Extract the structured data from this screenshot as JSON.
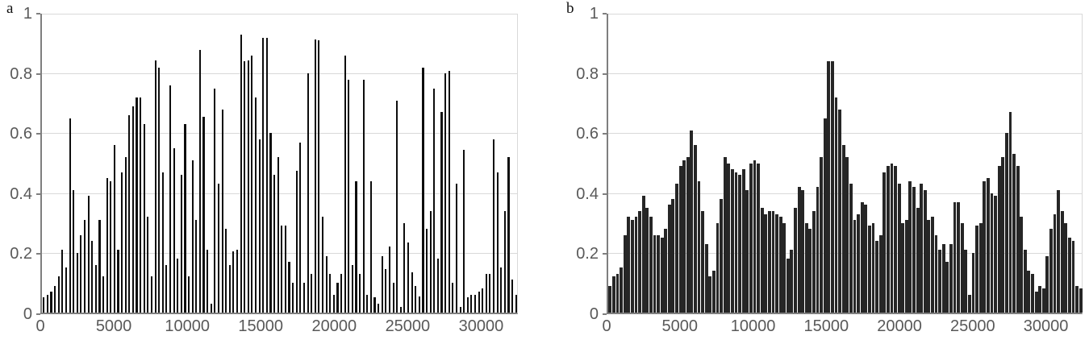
{
  "colors": {
    "background": "#ffffff",
    "axis_line": "#7f7f7f",
    "gridline": "#d9d9d9",
    "tick_text": "#595959",
    "panel_label_text": "#111111",
    "bar_a": "#0d0d0d",
    "bar_b": "#262626"
  },
  "chart_data": [
    {
      "type": "bar",
      "panel_label": "a",
      "legend": "none",
      "grid": "horizontal",
      "x_ticks": [
        0,
        5000,
        10000,
        15000,
        20000,
        25000,
        30000
      ],
      "y_ticks": [
        0,
        0.2,
        0.4,
        0.6,
        0.8,
        1
      ],
      "xlim": [
        0,
        32500
      ],
      "ylim": [
        0,
        1
      ],
      "bar_color": "#0d0d0d",
      "values": [
        0.05,
        0.06,
        0.07,
        0.09,
        0.12,
        0.21,
        0.15,
        0.65,
        0.41,
        0.2,
        0.26,
        0.31,
        0.39,
        0.24,
        0.16,
        0.31,
        0.12,
        0.45,
        0.44,
        0.56,
        0.21,
        0.47,
        0.52,
        0.66,
        0.69,
        0.72,
        0.72,
        0.63,
        0.32,
        0.12,
        0.845,
        0.82,
        0.47,
        0.16,
        0.76,
        0.55,
        0.18,
        0.46,
        0.63,
        0.12,
        0.51,
        0.31,
        0.88,
        0.655,
        0.21,
        0.03,
        0.75,
        0.43,
        0.68,
        0.28,
        0.16,
        0.205,
        0.21,
        0.93,
        0.84,
        0.845,
        0.86,
        0.72,
        0.58,
        0.92,
        0.92,
        0.6,
        0.46,
        0.52,
        0.29,
        0.29,
        0.17,
        0.1,
        0.475,
        0.57,
        0.1,
        0.8,
        0.13,
        0.915,
        0.91,
        0.32,
        0.19,
        0.13,
        0.06,
        0.1,
        0.13,
        0.86,
        0.78,
        0.16,
        0.44,
        0.13,
        0.78,
        0.06,
        0.44,
        0.05,
        0.03,
        0.19,
        0.145,
        0.22,
        0.1,
        0.71,
        0.02,
        0.3,
        0.235,
        0.135,
        0.09,
        0.055,
        0.82,
        0.28,
        0.34,
        0.75,
        0.18,
        0.67,
        0.8,
        0.81,
        0.1,
        0.43,
        0.02,
        0.545,
        0.05,
        0.06,
        0.06,
        0.07,
        0.08,
        0.13,
        0.13,
        0.58,
        0.47,
        0.15,
        0.34,
        0.52,
        0.11,
        0.06
      ]
    },
    {
      "type": "bar",
      "panel_label": "b",
      "legend": "none",
      "grid": "horizontal",
      "x_ticks": [
        0,
        5000,
        10000,
        15000,
        20000,
        25000,
        30000
      ],
      "y_ticks": [
        0,
        0.2,
        0.4,
        0.6,
        0.8,
        1
      ],
      "xlim": [
        0,
        32500
      ],
      "ylim": [
        0,
        1
      ],
      "bar_color": "#262626",
      "values": [
        0.09,
        0.12,
        0.13,
        0.15,
        0.26,
        0.32,
        0.31,
        0.32,
        0.34,
        0.39,
        0.35,
        0.32,
        0.26,
        0.26,
        0.25,
        0.28,
        0.36,
        0.38,
        0.43,
        0.49,
        0.51,
        0.52,
        0.61,
        0.56,
        0.44,
        0.34,
        0.23,
        0.12,
        0.14,
        0.3,
        0.38,
        0.52,
        0.5,
        0.48,
        0.47,
        0.46,
        0.48,
        0.41,
        0.5,
        0.51,
        0.5,
        0.35,
        0.33,
        0.34,
        0.34,
        0.33,
        0.32,
        0.3,
        0.18,
        0.21,
        0.35,
        0.42,
        0.41,
        0.3,
        0.28,
        0.34,
        0.42,
        0.52,
        0.65,
        0.84,
        0.84,
        0.72,
        0.68,
        0.56,
        0.52,
        0.43,
        0.31,
        0.33,
        0.37,
        0.36,
        0.29,
        0.3,
        0.24,
        0.26,
        0.47,
        0.49,
        0.5,
        0.49,
        0.43,
        0.3,
        0.31,
        0.44,
        0.42,
        0.35,
        0.43,
        0.41,
        0.31,
        0.32,
        0.26,
        0.21,
        0.23,
        0.17,
        0.23,
        0.37,
        0.37,
        0.3,
        0.21,
        0.06,
        0.2,
        0.29,
        0.3,
        0.44,
        0.45,
        0.4,
        0.39,
        0.49,
        0.52,
        0.6,
        0.67,
        0.53,
        0.49,
        0.32,
        0.21,
        0.14,
        0.13,
        0.07,
        0.09,
        0.08,
        0.19,
        0.28,
        0.33,
        0.41,
        0.34,
        0.3,
        0.25,
        0.24,
        0.09,
        0.08
      ]
    }
  ]
}
